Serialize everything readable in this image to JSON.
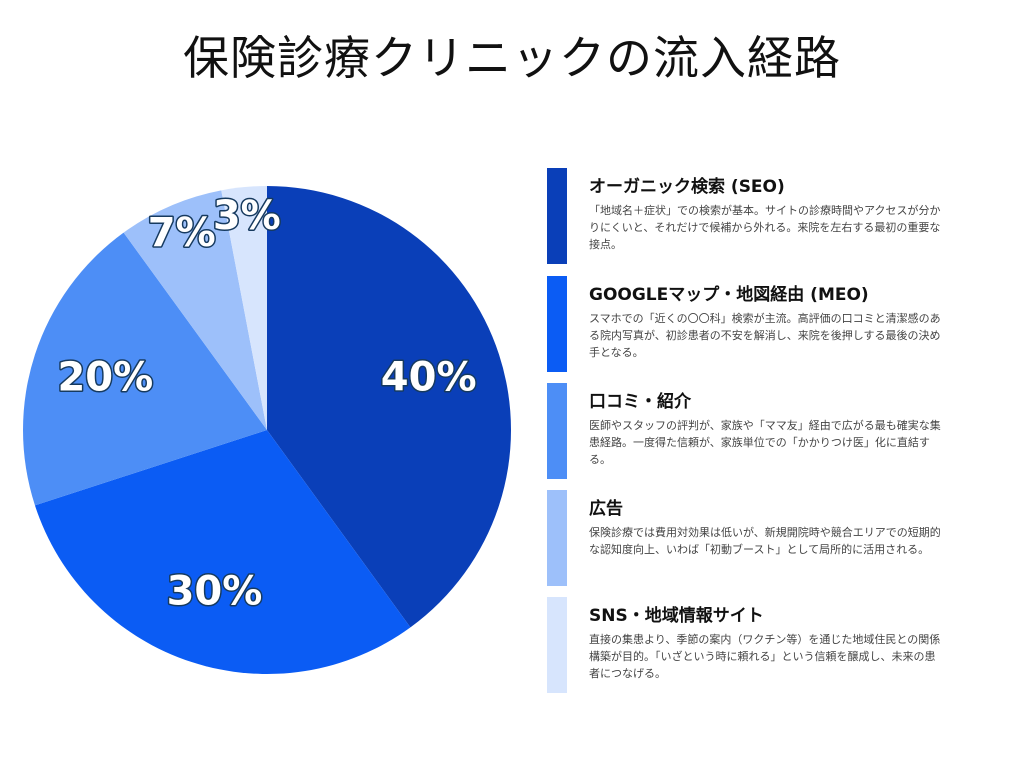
{
  "chart_data": {
    "type": "pie",
    "title": "保険診療クリニックの流入経路",
    "slices": [
      {
        "label": "オーガニック検索 (SEO)",
        "value": 40,
        "value_label": "40%",
        "color": "#0a3fb8",
        "description": "「地域名＋症状」での検索が基本。サイトの診療時間やアクセスが分かりにくいと、それだけで候補から外れる。来院を左右する最初の重要な接点。"
      },
      {
        "label": "GOOGLEマップ・地図経由 (MEO)",
        "value": 30,
        "value_label": "30%",
        "color": "#0b5cf4",
        "description": "スマホでの「近くの〇〇科」検索が主流。高評価の口コミと清潔感のある院内写真が、初診患者の不安を解消し、来院を後押しする最後の決め手となる。"
      },
      {
        "label": "口コミ・紹介",
        "value": 20,
        "value_label": "20%",
        "color": "#4d8ef6",
        "description": "医師やスタッフの評判が、家族や「ママ友」経由で広がる最も確実な集患経路。一度得た信頼が、家族単位での「かかりつけ医」化に直結する。"
      },
      {
        "label": "広告",
        "value": 7,
        "value_label": "7%",
        "color": "#9dc0fa",
        "description": "保険診療では費用対効果は低いが、新規開院時や競合エリアでの短期的な認知度向上、いわば「初動ブースト」として局所的に活用される。"
      },
      {
        "label": "SNS・地域情報サイト",
        "value": 3,
        "value_label": "3%",
        "color": "#d7e5fd",
        "description": "直接の集患より、季節の案内（ワクチン等）を通じた地域住民との関係構築が目的。「いざという時に頼れる」という信頼を醸成し、未来の患者につなげる。"
      }
    ]
  }
}
